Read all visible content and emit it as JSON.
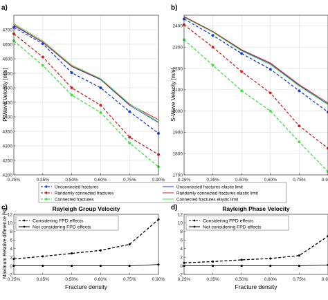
{
  "legend": {
    "entries": [
      {
        "label": "Unconnected fractures",
        "color": "#1f3fd0",
        "style": "dashed"
      },
      {
        "label": "Unconnected fractures elastic limit",
        "color": "#1f3fd0",
        "style": "solid"
      },
      {
        "label": "Randomly connected fractures",
        "color": "#d42020",
        "style": "dashed"
      },
      {
        "label": "Randomly connected fractures elastic limit",
        "color": "#d42020",
        "style": "solid"
      },
      {
        "label": "Connected fractures",
        "color": "#44dd44",
        "style": "dashed"
      },
      {
        "label": "Connected fractures elastic limit",
        "color": "#44dd44",
        "style": "solid"
      }
    ]
  },
  "chart_data": [
    {
      "panel": "a)",
      "type": "line",
      "title": "",
      "xlabel": "",
      "ylabel": "P-Wave Velocity [m/s]",
      "categories": [
        "0.25%",
        "0.35%",
        "0.50%",
        "0.60%",
        "0.75%",
        "0.90%"
      ],
      "ylim": [
        4200,
        4750
      ],
      "yticks": [
        4200,
        4250,
        4300,
        4350,
        4400,
        4450,
        4500,
        4550,
        4600,
        4650,
        4700
      ],
      "grid": true,
      "series": [
        {
          "name": "Unconnected fractures",
          "color": "#1f3fd0",
          "dashed": true,
          "marker": true,
          "values": [
            4708,
            4652,
            4552,
            4500,
            4418,
            4343
          ]
        },
        {
          "name": "Randomly connected fractures",
          "color": "#d42020",
          "dashed": true,
          "marker": true,
          "values": [
            4686,
            4606,
            4500,
            4440,
            4330,
            4270
          ]
        },
        {
          "name": "Connected fractures",
          "color": "#44dd44",
          "dashed": true,
          "marker": true,
          "values": [
            4662,
            4577,
            4475,
            4415,
            4310,
            4228
          ]
        },
        {
          "name": "Unconnected fractures elastic limit",
          "color": "#1f3fd0",
          "dashed": false,
          "marker": false,
          "values": [
            4714,
            4657,
            4573,
            4528,
            4440,
            4380
          ]
        },
        {
          "name": "Randomly connected fractures elastic limit",
          "color": "#d42020",
          "dashed": false,
          "marker": false,
          "values": [
            4717,
            4658,
            4575,
            4530,
            4443,
            4390
          ]
        },
        {
          "name": "Connected fractures elastic limit",
          "color": "#44dd44",
          "dashed": false,
          "marker": false,
          "values": [
            4721,
            4662,
            4578,
            4532,
            4445,
            4383
          ]
        }
      ]
    },
    {
      "panel": "b)",
      "type": "line",
      "title": "",
      "xlabel": "",
      "ylabel": "S-Wave Velocity [m/s]",
      "categories": [
        "0.25%",
        "0.35%",
        "0.50%",
        "0.60%",
        "0.75%",
        "0.90%"
      ],
      "ylim": [
        1700,
        2450
      ],
      "yticks": [
        1700,
        1800,
        1900,
        2000,
        2100,
        2200,
        2300,
        2400
      ],
      "grid": true,
      "series": [
        {
          "name": "Unconnected fractures",
          "color": "#1f3fd0",
          "dashed": true,
          "marker": true,
          "values": [
            2432,
            2355,
            2270,
            2196,
            2095,
            1995
          ]
        },
        {
          "name": "Randomly connected fractures",
          "color": "#d42020",
          "dashed": true,
          "marker": true,
          "values": [
            2405,
            2300,
            2185,
            2085,
            1930,
            1825
          ]
        },
        {
          "name": "Connected fractures",
          "color": "#44dd44",
          "dashed": true,
          "marker": true,
          "values": [
            2335,
            2215,
            2095,
            2000,
            1855,
            1715
          ]
        },
        {
          "name": "Unconnected fractures elastic limit",
          "color": "#1f3fd0",
          "dashed": false,
          "marker": false,
          "values": [
            2442,
            2372,
            2285,
            2222,
            2120,
            2033
          ]
        },
        {
          "name": "Randomly connected fractures elastic limit",
          "color": "#d42020",
          "dashed": false,
          "marker": false,
          "values": [
            2444,
            2374,
            2288,
            2226,
            2124,
            2038
          ]
        },
        {
          "name": "Connected fractures elastic limit",
          "color": "#44dd44",
          "dashed": false,
          "marker": false,
          "values": [
            2440,
            2370,
            2282,
            2218,
            2117,
            2030
          ]
        }
      ]
    },
    {
      "panel": "c)",
      "type": "line",
      "title": "Rayleigh Group Velocity",
      "xlabel": "Fracture density",
      "ylabel": "Maximum Relative difference [%]",
      "categories": [
        "0.25%",
        "0.35%",
        "0.50%",
        "0.60%",
        "0.75%",
        "0.90%"
      ],
      "ylim": [
        -2,
        12
      ],
      "yticks": [
        -2,
        0,
        2,
        4,
        6,
        8,
        10,
        12
      ],
      "grid": false,
      "series": [
        {
          "name": "Considering FPD effects",
          "color": "#000000",
          "dashed": true,
          "marker": true,
          "values": [
            1.6,
            2.2,
            2.9,
            3.6,
            5.0,
            10.8
          ]
        },
        {
          "name": "Not considering FPD effects",
          "color": "#000000",
          "dashed": false,
          "marker": true,
          "values": [
            0.0,
            0.0,
            0.0,
            0.0,
            0.0,
            0.3
          ]
        }
      ]
    },
    {
      "panel": "d)",
      "type": "line",
      "title": "Rayleigh Phase Velocity",
      "xlabel": "Fracture density",
      "ylabel": "",
      "categories": [
        "0.25%",
        "0.35%",
        "0.50%",
        "0.60%",
        "0.75%",
        "0.90%"
      ],
      "ylim": [
        -2,
        12
      ],
      "yticks": [
        -2,
        0,
        2,
        4,
        6,
        8,
        10,
        12
      ],
      "grid": false,
      "series": [
        {
          "name": "Considering FPD effects",
          "color": "#000000",
          "dashed": true,
          "marker": true,
          "values": [
            0.7,
            1.0,
            1.4,
            1.7,
            2.4,
            6.9
          ]
        },
        {
          "name": "Not considering FPD effects",
          "color": "#000000",
          "dashed": false,
          "marker": true,
          "values": [
            0.0,
            0.0,
            0.0,
            0.0,
            0.0,
            0.2
          ]
        }
      ]
    }
  ]
}
